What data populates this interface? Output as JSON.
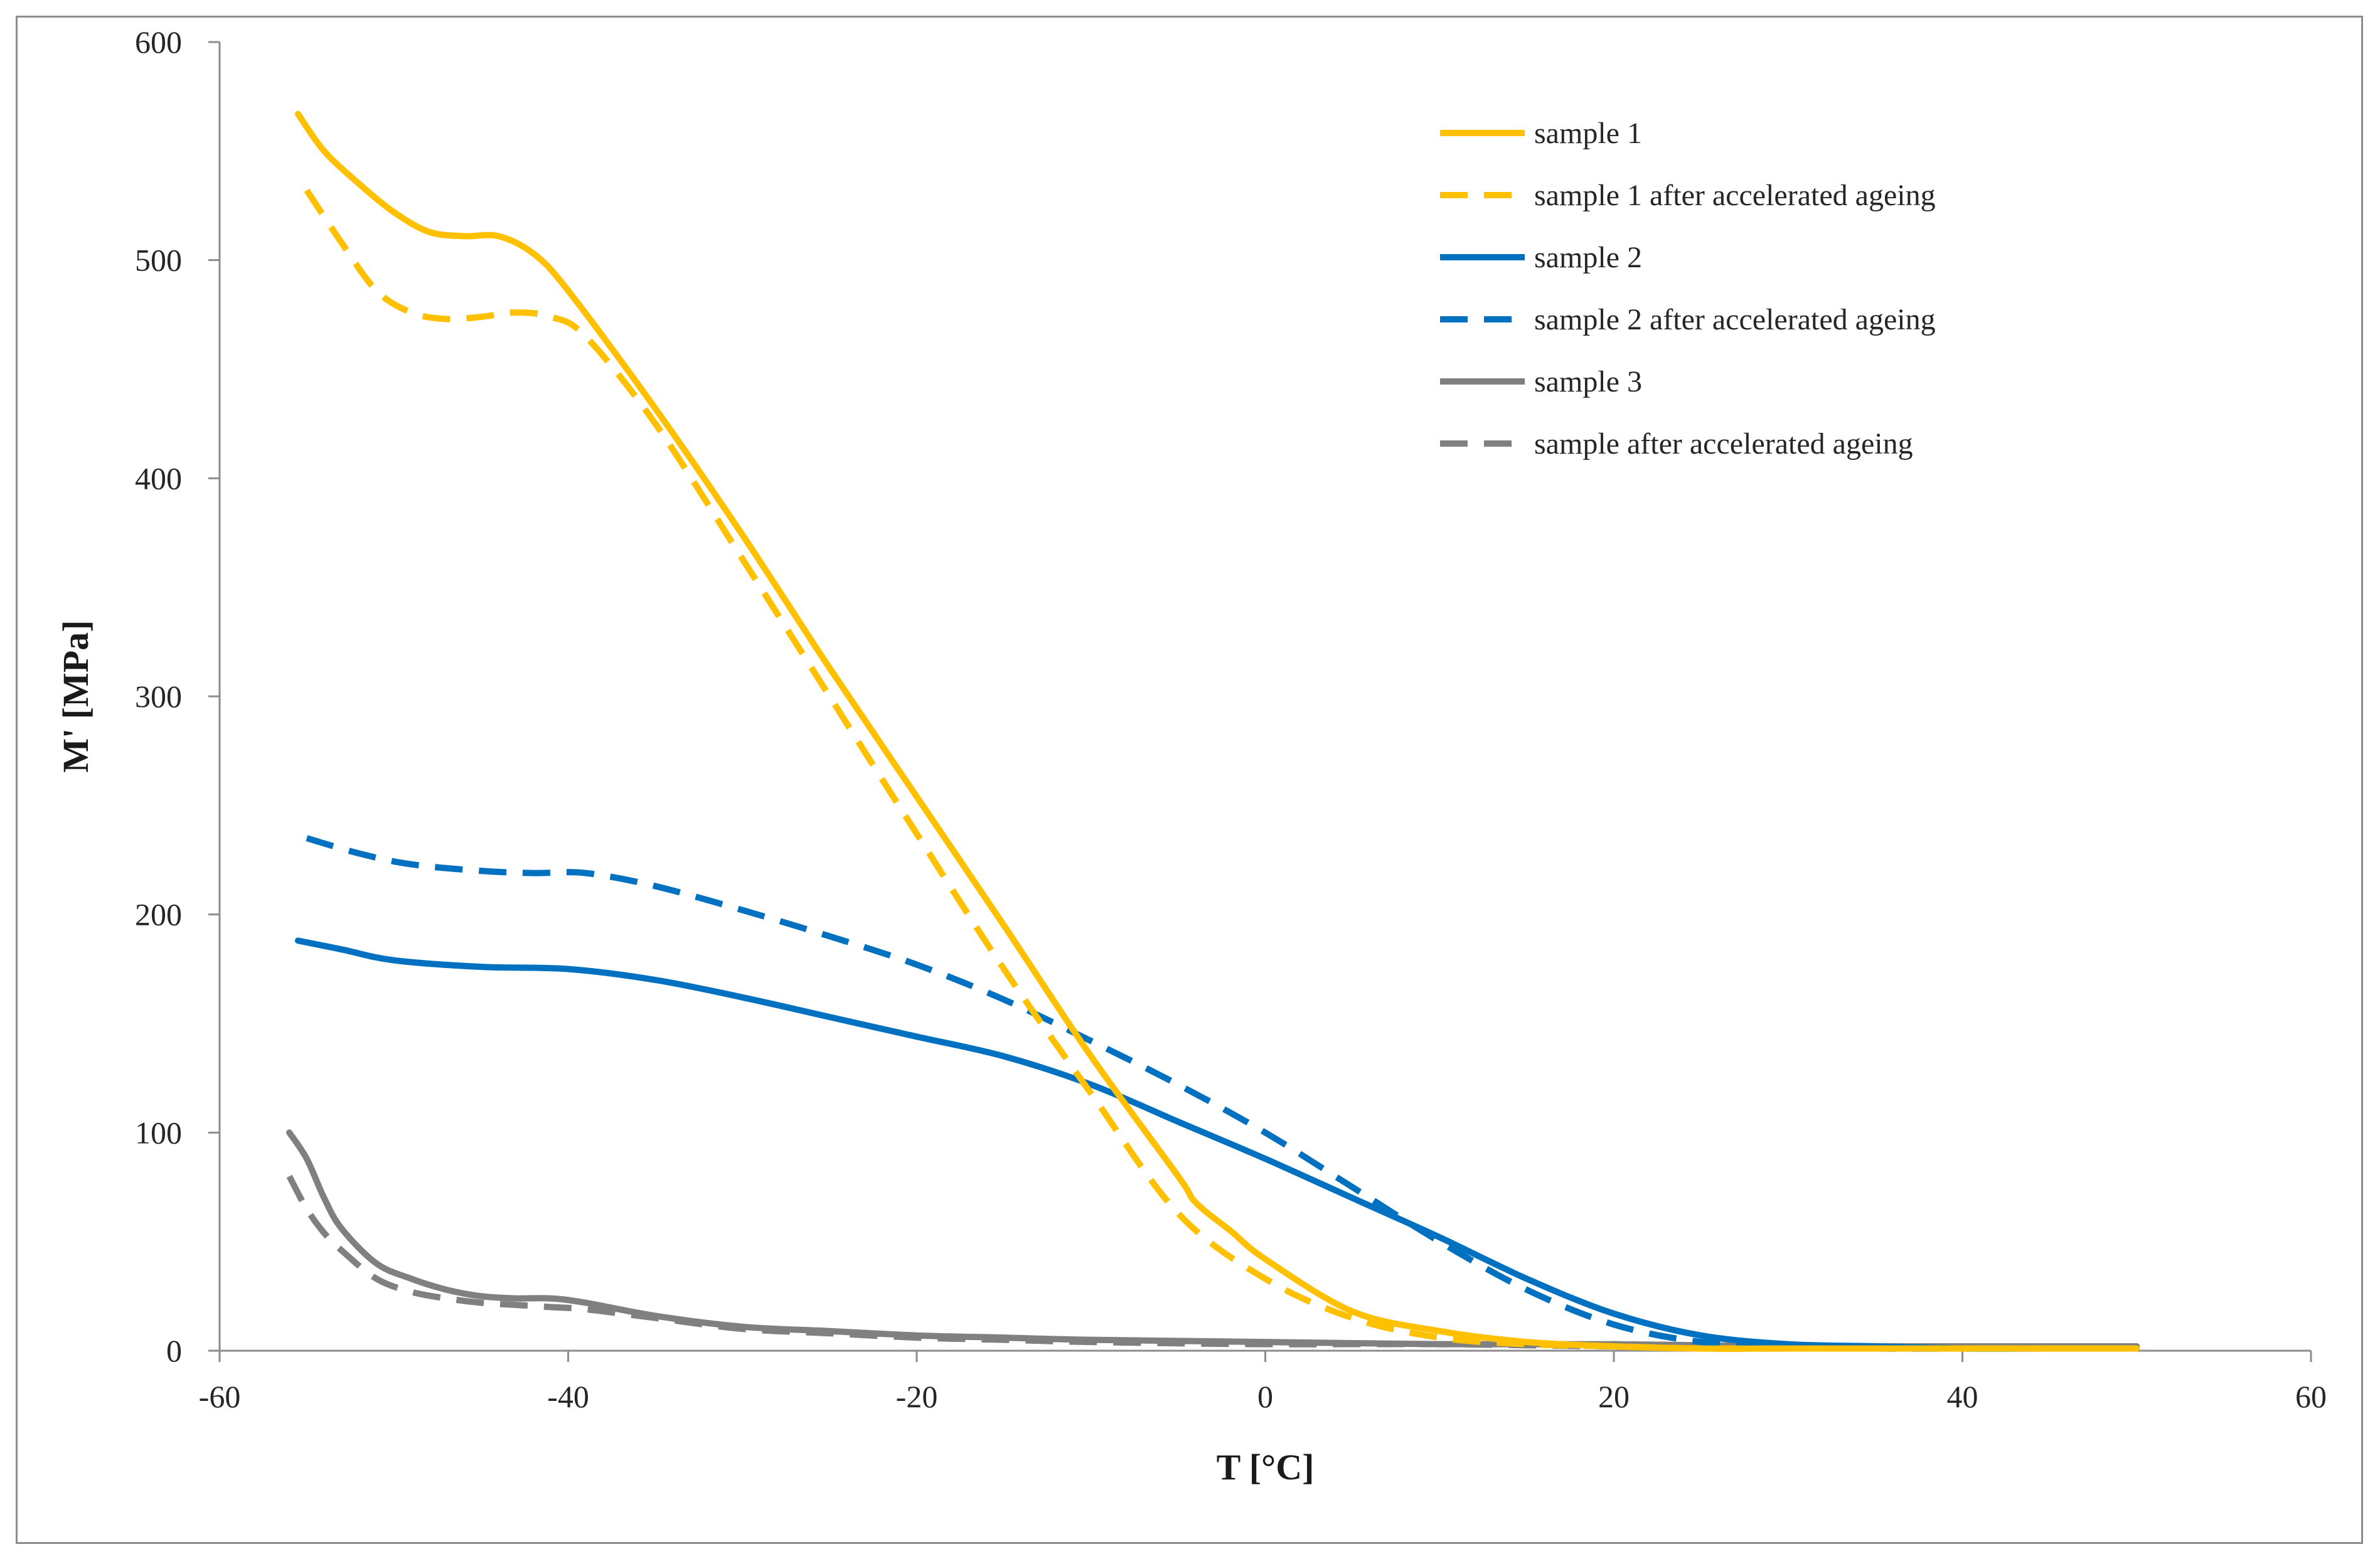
{
  "chart_data": {
    "type": "line",
    "title": "",
    "xlabel": "T [°C]",
    "ylabel": "M' [MPa]",
    "xlim": [
      -60,
      60
    ],
    "ylim": [
      0,
      600
    ],
    "xticks": [
      -60,
      -40,
      -20,
      0,
      20,
      40,
      60
    ],
    "yticks": [
      0,
      100,
      200,
      300,
      400,
      500,
      600
    ],
    "xtick_labels": [
      "-60",
      "-40",
      "-20",
      "0",
      "20",
      "40",
      "60"
    ],
    "ytick_labels": [
      "0",
      "100",
      "200",
      "300",
      "400",
      "500",
      "600"
    ],
    "grid": false,
    "legend_position": "top-right",
    "series": [
      {
        "name": "sample 1",
        "color": "#FFC000",
        "dash": "solid",
        "x": [
          -55.5,
          -54,
          -52,
          -50,
          -48,
          -46,
          -44,
          -42,
          -40,
          -35,
          -30,
          -25,
          -20,
          -15,
          -10,
          -5,
          -4,
          -2,
          0,
          5,
          10,
          15,
          20,
          25,
          30,
          35,
          40,
          45,
          50
        ],
        "y": [
          567,
          550,
          535,
          522,
          513,
          511,
          511,
          503,
          486,
          432,
          374,
          313,
          254,
          195,
          135,
          80,
          68,
          55,
          42,
          18,
          9,
          4,
          2,
          1,
          1,
          1,
          1,
          1,
          1
        ]
      },
      {
        "name": "sample 1 after accelerated ageing",
        "color": "#FFC000",
        "dash": "dashed",
        "x": [
          -55,
          -53,
          -51,
          -49,
          -47,
          -45,
          -43,
          -41,
          -39,
          -35,
          -30,
          -25,
          -20,
          -15,
          -10,
          -5,
          0,
          5,
          10,
          15,
          20,
          25,
          30,
          35,
          40,
          45,
          50
        ],
        "y": [
          532,
          508,
          486,
          476,
          473,
          474,
          476,
          474,
          465,
          425,
          363,
          300,
          237,
          175,
          118,
          63,
          33,
          15,
          6,
          3,
          2,
          1,
          1,
          1,
          1,
          1,
          1
        ]
      },
      {
        "name": "sample 2",
        "color": "#0070C0",
        "dash": "solid",
        "x": [
          -55.5,
          -53,
          -50,
          -45,
          -40,
          -35,
          -30,
          -25,
          -20,
          -15,
          -10,
          -5,
          0,
          5,
          10,
          15,
          20,
          25,
          30,
          35,
          40,
          45,
          50
        ],
        "y": [
          188,
          184,
          179,
          176,
          175,
          170,
          162,
          153,
          144,
          135,
          122,
          105,
          88,
          70,
          52,
          33,
          17,
          7,
          3,
          2,
          1,
          1,
          1
        ]
      },
      {
        "name": "sample 2 after accelerated ageing",
        "color": "#0070C0",
        "dash": "dashed",
        "x": [
          -55,
          -52,
          -49,
          -45,
          -42,
          -39,
          -35,
          -30,
          -25,
          -20,
          -15,
          -10,
          -5,
          0,
          5,
          10,
          15,
          20,
          25,
          30,
          35,
          40,
          45,
          50
        ],
        "y": [
          235,
          228,
          223,
          220,
          219,
          219,
          213,
          202,
          190,
          177,
          161,
          142,
          122,
          100,
          75,
          50,
          28,
          12,
          4,
          2,
          1,
          1,
          1,
          1
        ]
      },
      {
        "name": "sample 3",
        "color": "#808080",
        "dash": "solid",
        "x": [
          -56,
          -55,
          -54,
          -53,
          -51,
          -49,
          -47,
          -45,
          -43,
          -41,
          -39,
          -35,
          -30,
          -25,
          -20,
          -15,
          -10,
          0,
          10,
          20,
          30,
          40,
          50
        ],
        "y": [
          100,
          88,
          70,
          56,
          40,
          33,
          28,
          25,
          24,
          24,
          22,
          16,
          11,
          9,
          7,
          6,
          5,
          4,
          3,
          3,
          2,
          2,
          2
        ]
      },
      {
        "name": "sample after accelerated ageing",
        "color": "#808080",
        "dash": "dashed",
        "x": [
          -56,
          -55,
          -54,
          -53,
          -51,
          -49,
          -47,
          -45,
          -43,
          -41,
          -39,
          -35,
          -30,
          -25,
          -20,
          -15,
          -10,
          0,
          10,
          20,
          30,
          40,
          50
        ],
        "y": [
          80,
          65,
          54,
          46,
          33,
          27,
          24,
          22,
          21,
          20,
          19,
          15,
          10,
          8,
          6,
          5,
          4,
          3,
          3,
          2,
          2,
          2,
          2
        ]
      }
    ]
  }
}
